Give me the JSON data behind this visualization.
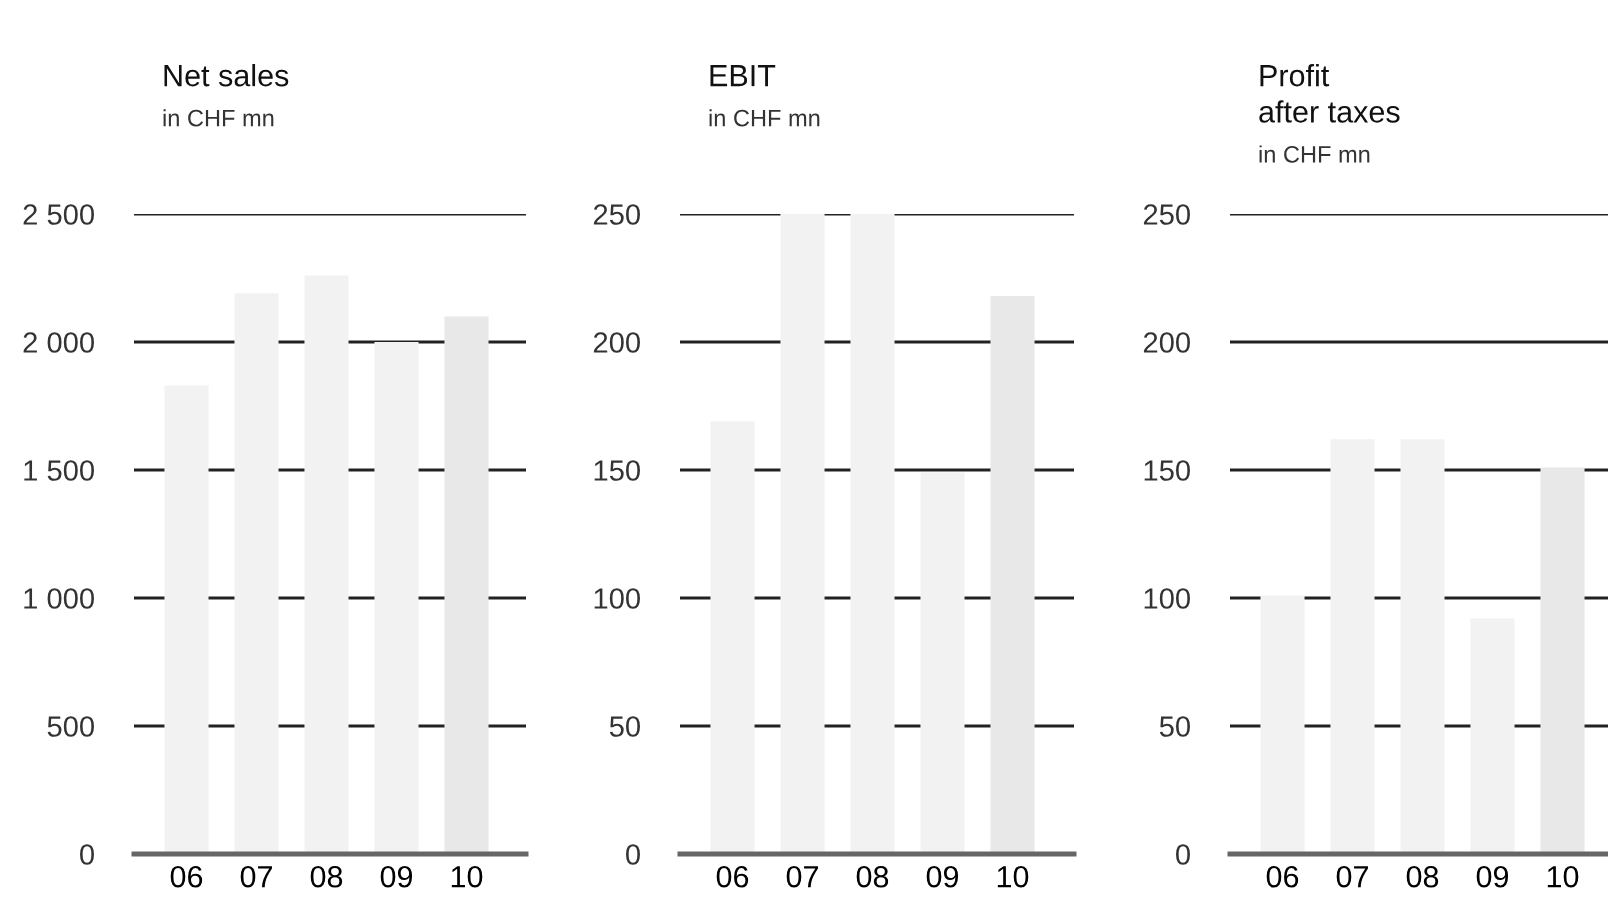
{
  "chart_data": [
    {
      "type": "bar",
      "title": "Net sales",
      "subtitle": "in CHF mn",
      "categories": [
        "06",
        "07",
        "08",
        "09",
        "10"
      ],
      "values": [
        1830,
        2190,
        2260,
        2000,
        2100
      ],
      "colors": [
        "#f2f2f2",
        "#f2f2f2",
        "#f2f2f2",
        "#f2f2f2",
        "#e8e8e8"
      ],
      "ylim": [
        0,
        2500
      ],
      "yticks": [
        0,
        500,
        {
          "value": 1000,
          "label": "1 000"
        },
        {
          "value": 1500,
          "label": "1 500"
        },
        {
          "value": 2000,
          "label": "2 000"
        },
        {
          "value": 2500,
          "label": "2 500"
        }
      ],
      "grid": "y"
    },
    {
      "type": "bar",
      "title": "EBIT",
      "subtitle": "in CHF mn",
      "categories": [
        "06",
        "07",
        "08",
        "09",
        "10"
      ],
      "values": [
        169,
        250,
        250,
        149,
        218
      ],
      "colors": [
        "#f2f2f2",
        "#f2f2f2",
        "#f2f2f2",
        "#f2f2f2",
        "#e8e8e8"
      ],
      "ylim": [
        0,
        250
      ],
      "yticks": [
        0,
        50,
        100,
        150,
        200,
        250
      ],
      "grid": "y"
    },
    {
      "type": "bar",
      "title": "Profit\nafter taxes",
      "subtitle": "in CHF mn",
      "categories": [
        "06",
        "07",
        "08",
        "09",
        "10"
      ],
      "values": [
        101,
        162,
        162,
        92,
        151
      ],
      "colors": [
        "#f2f2f2",
        "#f2f2f2",
        "#f2f2f2",
        "#f2f2f2",
        "#e8e8e8"
      ],
      "ylim": [
        0,
        250
      ],
      "yticks": [
        0,
        50,
        100,
        150,
        200,
        250
      ],
      "grid": "y"
    }
  ]
}
